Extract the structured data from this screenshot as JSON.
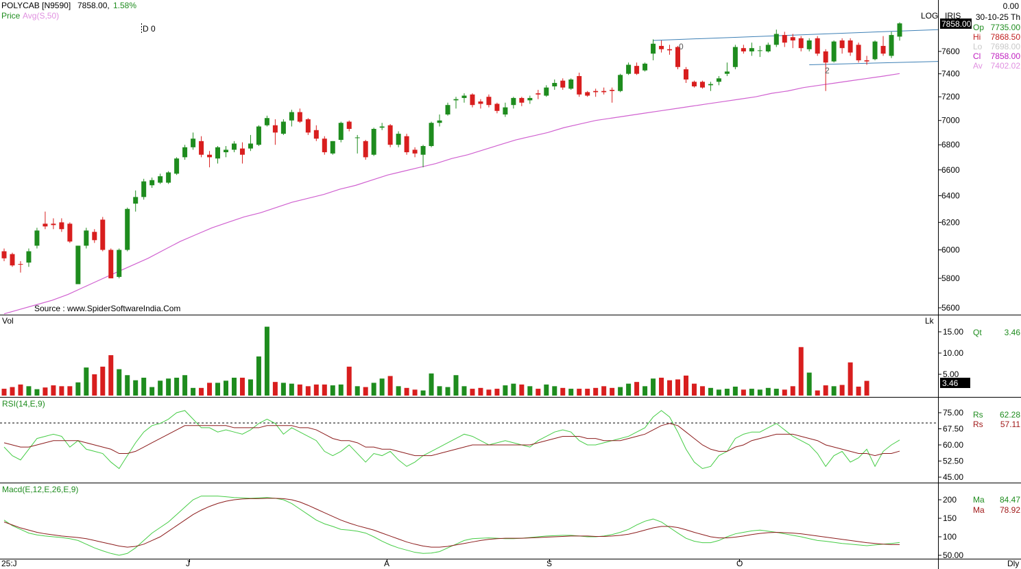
{
  "header": {
    "symbol": "POLYCAB [N9590]",
    "last": "7858.00,",
    "change_pct": "1.58%",
    "price_label": "Price",
    "avg_label": "Avg(S,50)",
    "marker": "D 0",
    "log_label": "LOG",
    "iris_label": "IRIS",
    "top_value": "0.00",
    "date": "30-10-25 Th",
    "source": "Source : www.SpiderSoftwareIndia.Com",
    "colors": {
      "up": "#1e8c1e",
      "down": "#d81e1e",
      "avg": "#d060d0",
      "trend": "#3c7fb5"
    }
  },
  "ohlc_panel": [
    {
      "key": "Op",
      "value": "7735.00",
      "color": "#1e8c1e"
    },
    {
      "key": "Hi",
      "value": "7868.50",
      "color": "#c02020"
    },
    {
      "key": "Lo",
      "value": "7698.00",
      "color": "#c8c8c8"
    },
    {
      "key": "Cl",
      "value": "7858.00",
      "color": "#c020c0"
    },
    {
      "key": "Av",
      "value": "7402.02",
      "color": "#e090e0"
    }
  ],
  "price_tag": "7858.00",
  "pattern_labels": [
    "0",
    "2"
  ],
  "price_ticks": [
    "7600",
    "7400",
    "7200",
    "7000",
    "6800",
    "6600",
    "6400",
    "6200",
    "6000",
    "5800",
    "5600"
  ],
  "x_labels": [
    "25:J",
    "J",
    "A",
    "S",
    "O",
    "Dly"
  ],
  "volume": {
    "label": "Vol",
    "lk_label": "Lk",
    "ticks": [
      "15.00",
      "10.00",
      "5.00"
    ],
    "qt_label": "Qt",
    "qt_value": "3.46",
    "tag": "3.46"
  },
  "rsi": {
    "label": "RSI(14,E,9)",
    "ticks": [
      "75.00",
      "67.50",
      "60.00",
      "52.50",
      "45.00"
    ],
    "rs1_label": "Rs",
    "rs1_value": "62.28",
    "rs2_label": "Rs",
    "rs2_value": "57.11"
  },
  "macd": {
    "label": "Macd(E,12,E,26,E,9)",
    "ticks": [
      "200",
      "150",
      "100",
      "50.00"
    ],
    "ma1_label": "Ma",
    "ma1_value": "84.47",
    "ma2_label": "Ma",
    "ma2_value": "78.92"
  },
  "chart_data": {
    "type": "candlestick",
    "title": "POLYCAB [N9590]",
    "scale": "log",
    "ylim": [
      5550,
      7950
    ],
    "period_marks": [
      "25:J",
      "J",
      "A",
      "S",
      "O"
    ],
    "candles": [
      {
        "o": 5990,
        "h": 6010,
        "l": 5920,
        "c": 5940
      },
      {
        "o": 5970,
        "h": 5980,
        "l": 5880,
        "c": 5890
      },
      {
        "o": 5900,
        "h": 5920,
        "l": 5840,
        "c": 5895
      },
      {
        "o": 5910,
        "h": 6010,
        "l": 5880,
        "c": 5990
      },
      {
        "o": 6030,
        "h": 6160,
        "l": 6010,
        "c": 6140
      },
      {
        "o": 6190,
        "h": 6280,
        "l": 6150,
        "c": 6170
      },
      {
        "o": 6190,
        "h": 6230,
        "l": 6150,
        "c": 6180
      },
      {
        "o": 6200,
        "h": 6230,
        "l": 6130,
        "c": 6150
      },
      {
        "o": 6190,
        "h": 6200,
        "l": 6050,
        "c": 6060
      },
      {
        "o": 5760,
        "h": 6030,
        "l": 5760,
        "c": 6030
      },
      {
        "o": 6030,
        "h": 6160,
        "l": 6010,
        "c": 6140
      },
      {
        "o": 6130,
        "h": 6150,
        "l": 6050,
        "c": 6070
      },
      {
        "o": 6220,
        "h": 6240,
        "l": 5990,
        "c": 6000
      },
      {
        "o": 6000,
        "h": 6010,
        "l": 5800,
        "c": 5800
      },
      {
        "o": 5810,
        "h": 6010,
        "l": 5800,
        "c": 6000
      },
      {
        "o": 6000,
        "h": 6310,
        "l": 5990,
        "c": 6300
      },
      {
        "o": 6340,
        "h": 6440,
        "l": 6280,
        "c": 6390
      },
      {
        "o": 6390,
        "h": 6530,
        "l": 6370,
        "c": 6510
      },
      {
        "o": 6480,
        "h": 6540,
        "l": 6460,
        "c": 6520
      },
      {
        "o": 6500,
        "h": 6570,
        "l": 6490,
        "c": 6550
      },
      {
        "o": 6500,
        "h": 6590,
        "l": 6490,
        "c": 6580
      },
      {
        "o": 6570,
        "h": 6700,
        "l": 6560,
        "c": 6690
      },
      {
        "o": 6700,
        "h": 6800,
        "l": 6680,
        "c": 6780
      },
      {
        "o": 6780,
        "h": 6900,
        "l": 6760,
        "c": 6850
      },
      {
        "o": 6830,
        "h": 6870,
        "l": 6700,
        "c": 6720
      },
      {
        "o": 6720,
        "h": 6750,
        "l": 6620,
        "c": 6700
      },
      {
        "o": 6690,
        "h": 6790,
        "l": 6650,
        "c": 6780
      },
      {
        "o": 6740,
        "h": 6790,
        "l": 6700,
        "c": 6760
      },
      {
        "o": 6760,
        "h": 6830,
        "l": 6740,
        "c": 6810
      },
      {
        "o": 6770,
        "h": 6820,
        "l": 6650,
        "c": 6720
      },
      {
        "o": 6770,
        "h": 6880,
        "l": 6750,
        "c": 6810
      },
      {
        "o": 6800,
        "h": 6960,
        "l": 6790,
        "c": 6950
      },
      {
        "o": 6960,
        "h": 7040,
        "l": 6950,
        "c": 7020
      },
      {
        "o": 6960,
        "h": 7010,
        "l": 6800,
        "c": 6900
      },
      {
        "o": 6890,
        "h": 7010,
        "l": 6880,
        "c": 6990
      },
      {
        "o": 7000,
        "h": 7090,
        "l": 6950,
        "c": 7070
      },
      {
        "o": 7070,
        "h": 7100,
        "l": 6980,
        "c": 6990
      },
      {
        "o": 7010,
        "h": 7020,
        "l": 6880,
        "c": 6900
      },
      {
        "o": 6920,
        "h": 6960,
        "l": 6830,
        "c": 6850
      },
      {
        "o": 6850,
        "h": 6870,
        "l": 6720,
        "c": 6740
      },
      {
        "o": 6730,
        "h": 6830,
        "l": 6720,
        "c": 6830
      },
      {
        "o": 6840,
        "h": 6990,
        "l": 6820,
        "c": 6980
      },
      {
        "o": 6990,
        "h": 7000,
        "l": 6910,
        "c": 6930
      },
      {
        "o": 6860,
        "h": 6880,
        "l": 6730,
        "c": 6860
      },
      {
        "o": 6830,
        "h": 6840,
        "l": 6680,
        "c": 6700
      },
      {
        "o": 6720,
        "h": 6940,
        "l": 6710,
        "c": 6930
      },
      {
        "o": 6940,
        "h": 6980,
        "l": 6920,
        "c": 6950
      },
      {
        "o": 6960,
        "h": 6970,
        "l": 6780,
        "c": 6800
      },
      {
        "o": 6800,
        "h": 6910,
        "l": 6780,
        "c": 6890
      },
      {
        "o": 6870,
        "h": 6890,
        "l": 6720,
        "c": 6740
      },
      {
        "o": 6760,
        "h": 6780,
        "l": 6700,
        "c": 6730
      },
      {
        "o": 6720,
        "h": 6800,
        "l": 6620,
        "c": 6790
      },
      {
        "o": 6790,
        "h": 6990,
        "l": 6780,
        "c": 6980
      },
      {
        "o": 6980,
        "h": 7050,
        "l": 6950,
        "c": 7000
      },
      {
        "o": 7050,
        "h": 7150,
        "l": 7040,
        "c": 7130
      },
      {
        "o": 7170,
        "h": 7200,
        "l": 7100,
        "c": 7180
      },
      {
        "o": 7190,
        "h": 7230,
        "l": 7150,
        "c": 7210
      },
      {
        "o": 7220,
        "h": 7230,
        "l": 7110,
        "c": 7130
      },
      {
        "o": 7160,
        "h": 7180,
        "l": 7100,
        "c": 7140
      },
      {
        "o": 7200,
        "h": 7220,
        "l": 7110,
        "c": 7130
      },
      {
        "o": 7140,
        "h": 7150,
        "l": 7060,
        "c": 7080
      },
      {
        "o": 7050,
        "h": 7150,
        "l": 7030,
        "c": 7110
      },
      {
        "o": 7130,
        "h": 7200,
        "l": 7100,
        "c": 7190
      },
      {
        "o": 7190,
        "h": 7200,
        "l": 7120,
        "c": 7150
      },
      {
        "o": 7170,
        "h": 7210,
        "l": 7140,
        "c": 7190
      },
      {
        "o": 7230,
        "h": 7260,
        "l": 7180,
        "c": 7220
      },
      {
        "o": 7210,
        "h": 7300,
        "l": 7200,
        "c": 7280
      },
      {
        "o": 7290,
        "h": 7350,
        "l": 7260,
        "c": 7320
      },
      {
        "o": 7340,
        "h": 7360,
        "l": 7260,
        "c": 7280
      },
      {
        "o": 7270,
        "h": 7360,
        "l": 7260,
        "c": 7350
      },
      {
        "o": 7380,
        "h": 7410,
        "l": 7200,
        "c": 7220
      },
      {
        "o": 7240,
        "h": 7250,
        "l": 7200,
        "c": 7210
      },
      {
        "o": 7250,
        "h": 7270,
        "l": 7200,
        "c": 7240
      },
      {
        "o": 7250,
        "h": 7280,
        "l": 7220,
        "c": 7240
      },
      {
        "o": 7260,
        "h": 7280,
        "l": 7150,
        "c": 7250
      },
      {
        "o": 7250,
        "h": 7400,
        "l": 7240,
        "c": 7390
      },
      {
        "o": 7400,
        "h": 7500,
        "l": 7390,
        "c": 7480
      },
      {
        "o": 7470,
        "h": 7500,
        "l": 7390,
        "c": 7400
      },
      {
        "o": 7430,
        "h": 7500,
        "l": 7420,
        "c": 7490
      },
      {
        "o": 7580,
        "h": 7710,
        "l": 7520,
        "c": 7670
      },
      {
        "o": 7650,
        "h": 7700,
        "l": 7590,
        "c": 7620
      },
      {
        "o": 7620,
        "h": 7660,
        "l": 7570,
        "c": 7610
      },
      {
        "o": 7640,
        "h": 7650,
        "l": 7440,
        "c": 7460
      },
      {
        "o": 7440,
        "h": 7460,
        "l": 7320,
        "c": 7350
      },
      {
        "o": 7330,
        "h": 7340,
        "l": 7280,
        "c": 7290
      },
      {
        "o": 7330,
        "h": 7340,
        "l": 7270,
        "c": 7280
      },
      {
        "o": 7300,
        "h": 7330,
        "l": 7250,
        "c": 7310
      },
      {
        "o": 7330,
        "h": 7380,
        "l": 7300,
        "c": 7360
      },
      {
        "o": 7400,
        "h": 7500,
        "l": 7380,
        "c": 7420
      },
      {
        "o": 7460,
        "h": 7660,
        "l": 7440,
        "c": 7640
      },
      {
        "o": 7630,
        "h": 7660,
        "l": 7580,
        "c": 7600
      },
      {
        "o": 7600,
        "h": 7680,
        "l": 7560,
        "c": 7630
      },
      {
        "o": 7610,
        "h": 7650,
        "l": 7550,
        "c": 7610
      },
      {
        "o": 7600,
        "h": 7680,
        "l": 7590,
        "c": 7660
      },
      {
        "o": 7660,
        "h": 7800,
        "l": 7640,
        "c": 7760
      },
      {
        "o": 7750,
        "h": 7780,
        "l": 7640,
        "c": 7680
      },
      {
        "o": 7730,
        "h": 7760,
        "l": 7630,
        "c": 7700
      },
      {
        "o": 7720,
        "h": 7740,
        "l": 7600,
        "c": 7630
      },
      {
        "o": 7620,
        "h": 7720,
        "l": 7600,
        "c": 7700
      },
      {
        "o": 7720,
        "h": 7740,
        "l": 7560,
        "c": 7580
      },
      {
        "o": 7600,
        "h": 7620,
        "l": 7250,
        "c": 7500
      },
      {
        "o": 7510,
        "h": 7700,
        "l": 7500,
        "c": 7690
      },
      {
        "o": 7700,
        "h": 7720,
        "l": 7580,
        "c": 7630
      },
      {
        "o": 7700,
        "h": 7720,
        "l": 7560,
        "c": 7590
      },
      {
        "o": 7660,
        "h": 7680,
        "l": 7500,
        "c": 7520
      },
      {
        "o": 7520,
        "h": 7560,
        "l": 7480,
        "c": 7510
      },
      {
        "o": 7530,
        "h": 7700,
        "l": 7520,
        "c": 7690
      },
      {
        "o": 7650,
        "h": 7740,
        "l": 7560,
        "c": 7580
      },
      {
        "o": 7560,
        "h": 7780,
        "l": 7540,
        "c": 7750
      },
      {
        "o": 7735,
        "h": 7868.5,
        "l": 7698,
        "c": 7858
      }
    ],
    "avg50": [
      5560,
      5590,
      5620,
      5650,
      5690,
      5740,
      5790,
      5840,
      5890,
      5940,
      6000,
      6060,
      6110,
      6160,
      6200,
      6240,
      6270,
      6310,
      6350,
      6380,
      6410,
      6450,
      6480,
      6520,
      6560,
      6590,
      6620,
      6650,
      6690,
      6720,
      6760,
      6800,
      6840,
      6870,
      6900,
      6940,
      6970,
      7000,
      7020,
      7040,
      7060,
      7080,
      7100,
      7120,
      7140,
      7160,
      7180,
      7200,
      7230,
      7250,
      7280,
      7300,
      7320,
      7340,
      7360,
      7380,
      7402
    ],
    "volume": [
      1.6,
      2.0,
      2.6,
      2.2,
      1.5,
      1.9,
      2.4,
      2.2,
      2.2,
      3.1,
      6.6,
      5.0,
      6.8,
      9.5,
      6.2,
      4.8,
      3.6,
      4.2,
      2.0,
      3.5,
      4.0,
      4.2,
      4.8,
      1.8,
      1.8,
      3.0,
      3.0,
      3.5,
      4.2,
      4.2,
      3.8,
      9.2,
      16.2,
      3.2,
      3.0,
      2.8,
      2.6,
      2.2,
      2.6,
      2.6,
      2.4,
      2.6,
      6.8,
      2.2,
      2.0,
      3.0,
      4.0,
      4.6,
      2.2,
      1.8,
      1.4,
      1.2,
      5.2,
      2.2,
      2.0,
      4.8,
      2.2,
      1.6,
      1.8,
      1.4,
      1.6,
      2.4,
      2.8,
      2.6,
      2.2,
      1.6,
      2.6,
      2.2,
      1.8,
      1.6,
      1.6,
      1.6,
      1.8,
      2.2,
      1.8,
      2.0,
      2.8,
      3.2,
      2.2,
      4.0,
      4.2,
      3.6,
      3.8,
      4.7,
      2.8,
      2.2,
      1.8,
      1.4,
      1.6,
      2.1,
      1.4,
      1.6,
      1.4,
      1.8,
      1.6,
      1.4,
      2.2,
      11.4,
      5.4,
      1.2,
      2.4,
      2.2,
      2.5,
      7.8,
      2.1,
      3.46
    ],
    "rsi": [
      59,
      55,
      53,
      58,
      63,
      64,
      65,
      64,
      59,
      62,
      58,
      57,
      56,
      52,
      49,
      55,
      61,
      66,
      69,
      70,
      72,
      75,
      76,
      72,
      68,
      68,
      66,
      67,
      66,
      65,
      67,
      70,
      72,
      70,
      65,
      68,
      66,
      64,
      62,
      57,
      55,
      57,
      60,
      56,
      52,
      56,
      55,
      57,
      53,
      50,
      52,
      55,
      57,
      59,
      61,
      63,
      65,
      64,
      62,
      60,
      61,
      62,
      61,
      60,
      59,
      62,
      64,
      66,
      67,
      66,
      62,
      60,
      60,
      61,
      62,
      63,
      64,
      66,
      68,
      73,
      76,
      73,
      66,
      58,
      52,
      49,
      50,
      55,
      57,
      63,
      65,
      66,
      66,
      68,
      70,
      67,
      64,
      62,
      60,
      56,
      50,
      55,
      57,
      52,
      54,
      58,
      50,
      57,
      60,
      62.28
    ],
    "rsi_signal": [
      61,
      60,
      59,
      59,
      60,
      61,
      62,
      62,
      62,
      62,
      61,
      60,
      59,
      58,
      56,
      56,
      57,
      59,
      61,
      63,
      65,
      67,
      69,
      69,
      69,
      69,
      69,
      69,
      68,
      68,
      68,
      68,
      69,
      69,
      69,
      69,
      68,
      68,
      67,
      65,
      63,
      62,
      62,
      61,
      59,
      59,
      58,
      58,
      57,
      56,
      55,
      55,
      55,
      56,
      57,
      58,
      59,
      60,
      60,
      60,
      60,
      60,
      60,
      60,
      60,
      61,
      62,
      63,
      64,
      64,
      64,
      63,
      63,
      62,
      62,
      62,
      63,
      64,
      65,
      67,
      69,
      70,
      69,
      66,
      63,
      60,
      58,
      57,
      57,
      59,
      60,
      62,
      63,
      64,
      65,
      65,
      65,
      64,
      63,
      62,
      60,
      59,
      58,
      57,
      56,
      56,
      55,
      56,
      56,
      57.11
    ],
    "macd": [
      145,
      130,
      120,
      110,
      105,
      102,
      100,
      98,
      95,
      90,
      80,
      70,
      62,
      55,
      50,
      55,
      70,
      90,
      110,
      125,
      140,
      160,
      180,
      200,
      210,
      210,
      210,
      208,
      206,
      205,
      204,
      205,
      206,
      204,
      200,
      190,
      175,
      160,
      145,
      135,
      128,
      120,
      118,
      115,
      110,
      100,
      88,
      78,
      70,
      64,
      58,
      55,
      56,
      60,
      70,
      80,
      90,
      95,
      96,
      97,
      96,
      95,
      95,
      96,
      98,
      100,
      102,
      103,
      104,
      104,
      102,
      100,
      100,
      102,
      106,
      112,
      120,
      132,
      142,
      148,
      140,
      125,
      110,
      96,
      88,
      84,
      84,
      90,
      100,
      108,
      112,
      116,
      118,
      115,
      112,
      108,
      104,
      100,
      95,
      90,
      88,
      85,
      82,
      80,
      78,
      76,
      78,
      80,
      82,
      84.47
    ],
    "macd_signal": [
      140,
      132,
      124,
      118,
      112,
      108,
      105,
      102,
      100,
      98,
      95,
      90,
      85,
      80,
      75,
      72,
      74,
      80,
      90,
      100,
      115,
      130,
      145,
      160,
      172,
      182,
      190,
      196,
      200,
      202,
      203,
      203,
      204,
      204,
      203,
      200,
      194,
      185,
      175,
      165,
      155,
      145,
      137,
      130,
      124,
      118,
      110,
      102,
      94,
      86,
      80,
      75,
      72,
      72,
      74,
      78,
      82,
      86,
      90,
      93,
      95,
      96,
      96,
      96,
      97,
      98,
      99,
      100,
      101,
      102,
      102,
      102,
      101,
      101,
      102,
      104,
      107,
      112,
      118,
      124,
      128,
      128,
      125,
      119,
      112,
      106,
      100,
      97,
      97,
      99,
      102,
      106,
      109,
      111,
      112,
      111,
      110,
      108,
      105,
      102,
      99,
      96,
      93,
      90,
      87,
      84,
      82,
      80,
      79,
      78.92
    ],
    "trendlines": {
      "upper": [
        7700,
        7800
      ],
      "lower": [
        7480,
        7510
      ]
    }
  }
}
